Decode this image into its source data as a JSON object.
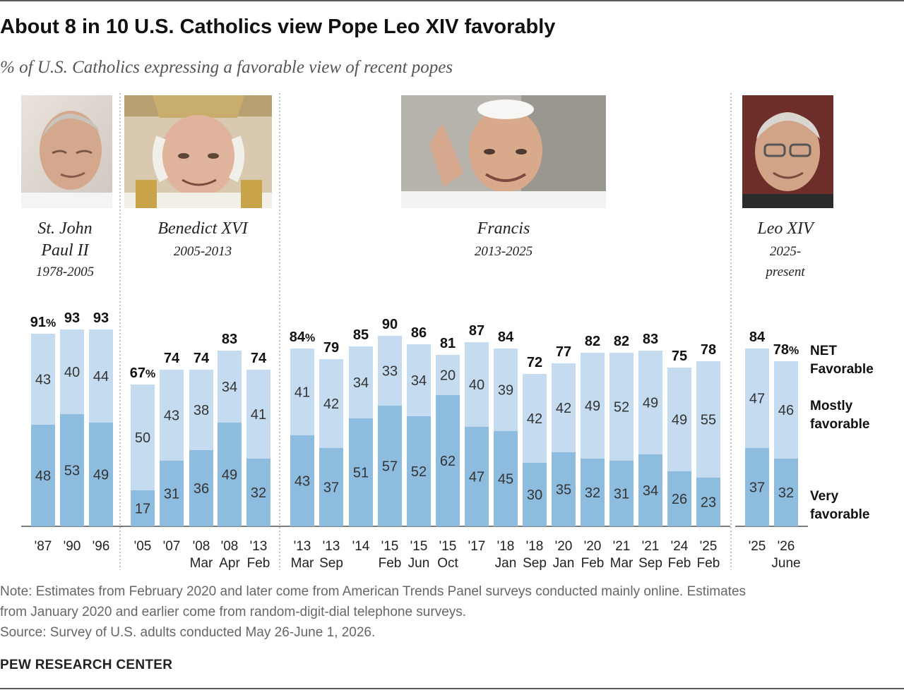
{
  "title": "About 8 in 10 U.S. Catholics view Pope Leo XIV favorably",
  "subtitle": "% of U.S. Catholics expressing a favorable view of recent popes",
  "popes": [
    {
      "name": [
        "St. John",
        "Paul II"
      ],
      "years": [
        "1978-2005"
      ]
    },
    {
      "name": [
        "Benedict XVI"
      ],
      "years": [
        "2005-2013"
      ]
    },
    {
      "name": [
        "Francis"
      ],
      "years": [
        "2013-2025"
      ]
    },
    {
      "name": [
        "Leo XIV"
      ],
      "years": [
        "2025-",
        "present"
      ]
    }
  ],
  "legend": {
    "net": [
      "NET",
      "Favorable"
    ],
    "mostly": [
      "Mostly",
      "favorable"
    ],
    "very": [
      "Very",
      "favorable"
    ]
  },
  "colors": {
    "very": "#8dbcdf",
    "mostly": "#c5dcf0"
  },
  "chart_data": {
    "type": "bar",
    "stacked": true,
    "series_order": [
      "Very favorable",
      "Mostly favorable"
    ],
    "groups": [
      {
        "pope": "St. John Paul II",
        "bars": [
          {
            "label": [
              "'87"
            ],
            "net": 91,
            "very": 48,
            "mostly": 43,
            "net_label": "91%"
          },
          {
            "label": [
              "'90"
            ],
            "net": 93,
            "very": 53,
            "mostly": 40,
            "net_label": "93"
          },
          {
            "label": [
              "'96"
            ],
            "net": 93,
            "very": 49,
            "mostly": 44,
            "net_label": "93"
          }
        ]
      },
      {
        "pope": "Benedict XVI",
        "bars": [
          {
            "label": [
              "'05"
            ],
            "net": 67,
            "very": 17,
            "mostly": 50,
            "net_label": "67%"
          },
          {
            "label": [
              "'07"
            ],
            "net": 74,
            "very": 31,
            "mostly": 43,
            "net_label": "74"
          },
          {
            "label": [
              "'08",
              "Mar"
            ],
            "net": 74,
            "very": 36,
            "mostly": 38,
            "net_label": "74"
          },
          {
            "label": [
              "'08",
              "Apr"
            ],
            "net": 83,
            "very": 49,
            "mostly": 34,
            "net_label": "83"
          },
          {
            "label": [
              "'13",
              "Feb"
            ],
            "net": 74,
            "very": 32,
            "mostly": 41,
            "net_label": "74"
          }
        ]
      },
      {
        "pope": "Francis",
        "bars": [
          {
            "label": [
              "'13",
              "Mar"
            ],
            "net": 84,
            "very": 43,
            "mostly": 41,
            "net_label": "84%"
          },
          {
            "label": [
              "'13",
              "Sep"
            ],
            "net": 79,
            "very": 37,
            "mostly": 42,
            "net_label": "79"
          },
          {
            "label": [
              "'14"
            ],
            "net": 85,
            "very": 51,
            "mostly": 34,
            "net_label": "85"
          },
          {
            "label": [
              "'15",
              "Feb"
            ],
            "net": 90,
            "very": 57,
            "mostly": 33,
            "net_label": "90"
          },
          {
            "label": [
              "'15",
              "Jun"
            ],
            "net": 86,
            "very": 52,
            "mostly": 34,
            "net_label": "86"
          },
          {
            "label": [
              "'15",
              "Oct"
            ],
            "net": 81,
            "very": 62,
            "mostly": 20,
            "net_label": "81"
          },
          {
            "label": [
              "'17"
            ],
            "net": 87,
            "very": 47,
            "mostly": 40,
            "net_label": "87"
          },
          {
            "label": [
              "'18",
              "Jan"
            ],
            "net": 84,
            "very": 45,
            "mostly": 39,
            "net_label": "84"
          },
          {
            "label": [
              "'18",
              "Sep"
            ],
            "net": 72,
            "very": 30,
            "mostly": 42,
            "net_label": "72"
          },
          {
            "label": [
              "'20",
              "Jan"
            ],
            "net": 77,
            "very": 35,
            "mostly": 42,
            "net_label": "77"
          },
          {
            "label": [
              "'20",
              "Feb"
            ],
            "net": 82,
            "very": 32,
            "mostly": 49,
            "net_label": "82"
          },
          {
            "label": [
              "'21",
              "Mar"
            ],
            "net": 82,
            "very": 31,
            "mostly": 52,
            "net_label": "82"
          },
          {
            "label": [
              "'21",
              "Sep"
            ],
            "net": 83,
            "very": 34,
            "mostly": 49,
            "net_label": "83"
          },
          {
            "label": [
              "'24",
              "Feb"
            ],
            "net": 75,
            "very": 26,
            "mostly": 49,
            "net_label": "75"
          },
          {
            "label": [
              "'25",
              "Feb"
            ],
            "net": 78,
            "very": 23,
            "mostly": 55,
            "net_label": "78"
          }
        ]
      },
      {
        "pope": "Leo XIV",
        "bars": [
          {
            "label": [
              "'25"
            ],
            "net": 84,
            "very": 37,
            "mostly": 47,
            "net_label": "84"
          },
          {
            "label": [
              "'26",
              "June"
            ],
            "net": 78,
            "very": 32,
            "mostly": 46,
            "net_label": "78%"
          }
        ]
      }
    ]
  },
  "note": [
    "Note: Estimates from February 2020 and later come from American Trends Panel surveys conducted mainly online. Estimates",
    "from January 2020 and earlier come from random-digit-dial telephone surveys.",
    "Source: Survey of U.S. adults conducted May 26-June 1, 2026."
  ],
  "source_brand": "PEW RESEARCH CENTER"
}
